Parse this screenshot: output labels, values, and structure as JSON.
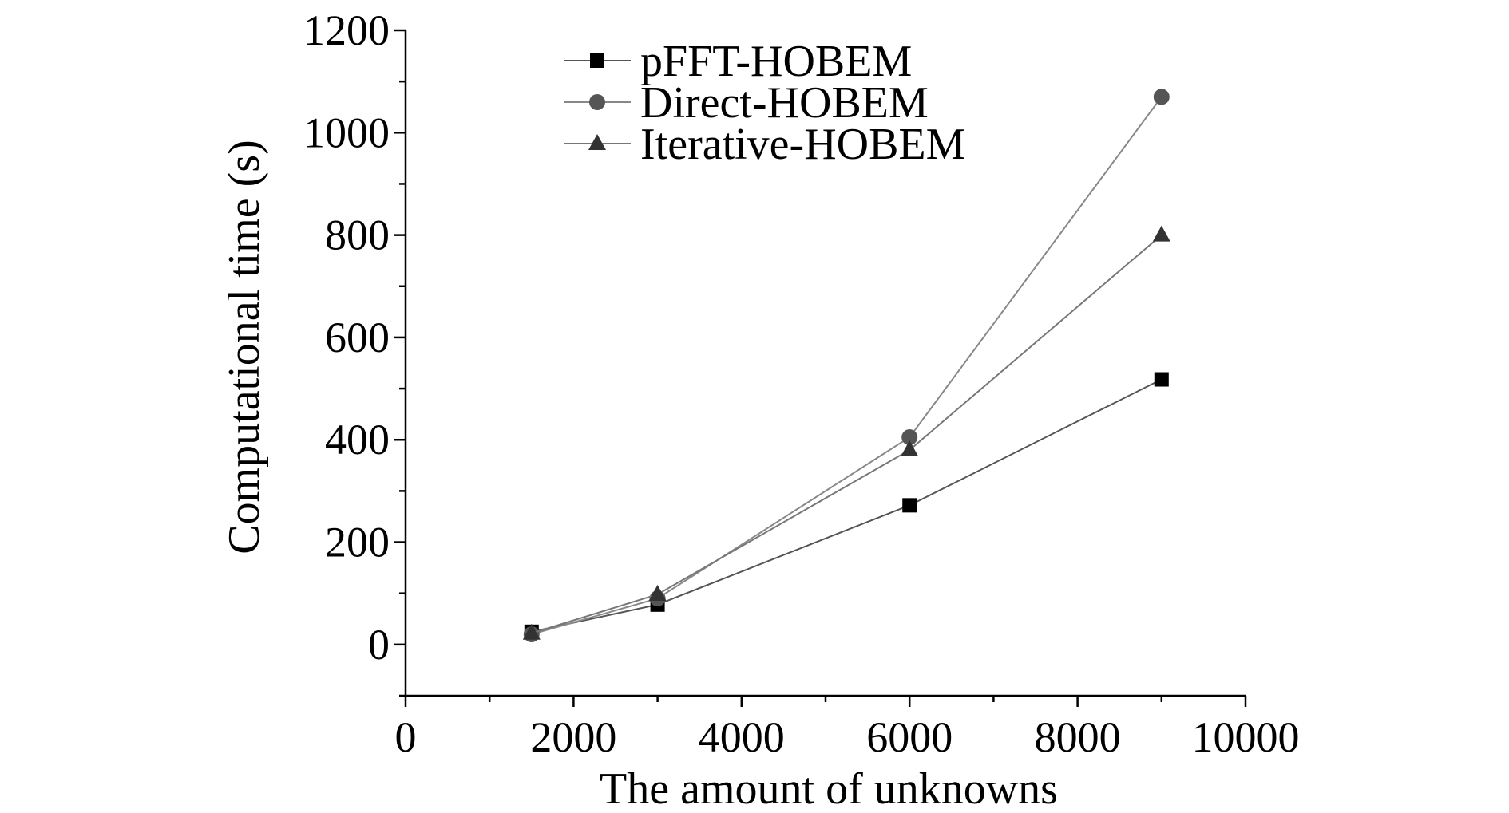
{
  "chart_data": {
    "type": "line",
    "title": "",
    "xlabel": "The amount of unknowns",
    "ylabel": "Computational time (s)",
    "xlim": [
      0,
      10000
    ],
    "ylim": [
      -100,
      1200
    ],
    "x_ticks": [
      0,
      2000,
      4000,
      6000,
      8000,
      10000
    ],
    "x_tick_labels": [
      "0",
      "2000",
      "4000",
      "6000",
      "8000",
      "10000"
    ],
    "y_ticks": [
      0,
      200,
      400,
      600,
      800,
      1000,
      1200
    ],
    "y_tick_labels": [
      "0",
      "200",
      "400",
      "600",
      "800",
      "1000",
      "1200"
    ],
    "grid": false,
    "legend_position": "top-center",
    "series": [
      {
        "name": "pFFT-HOBEM",
        "marker": "square",
        "color": "#000000",
        "line_color": "#555555",
        "x": [
          1500,
          3000,
          6000,
          9000
        ],
        "y": [
          25,
          78,
          272,
          518
        ]
      },
      {
        "name": "Direct-HOBEM",
        "marker": "circle",
        "color": "#555555",
        "line_color": "#888888",
        "x": [
          1500,
          3000,
          6000,
          9000
        ],
        "y": [
          20,
          90,
          405,
          1070
        ]
      },
      {
        "name": "Iterative-HOBEM",
        "marker": "triangle",
        "color": "#333333",
        "line_color": "#777777",
        "x": [
          1500,
          3000,
          6000,
          9000
        ],
        "y": [
          22,
          98,
          380,
          800
        ]
      }
    ]
  }
}
